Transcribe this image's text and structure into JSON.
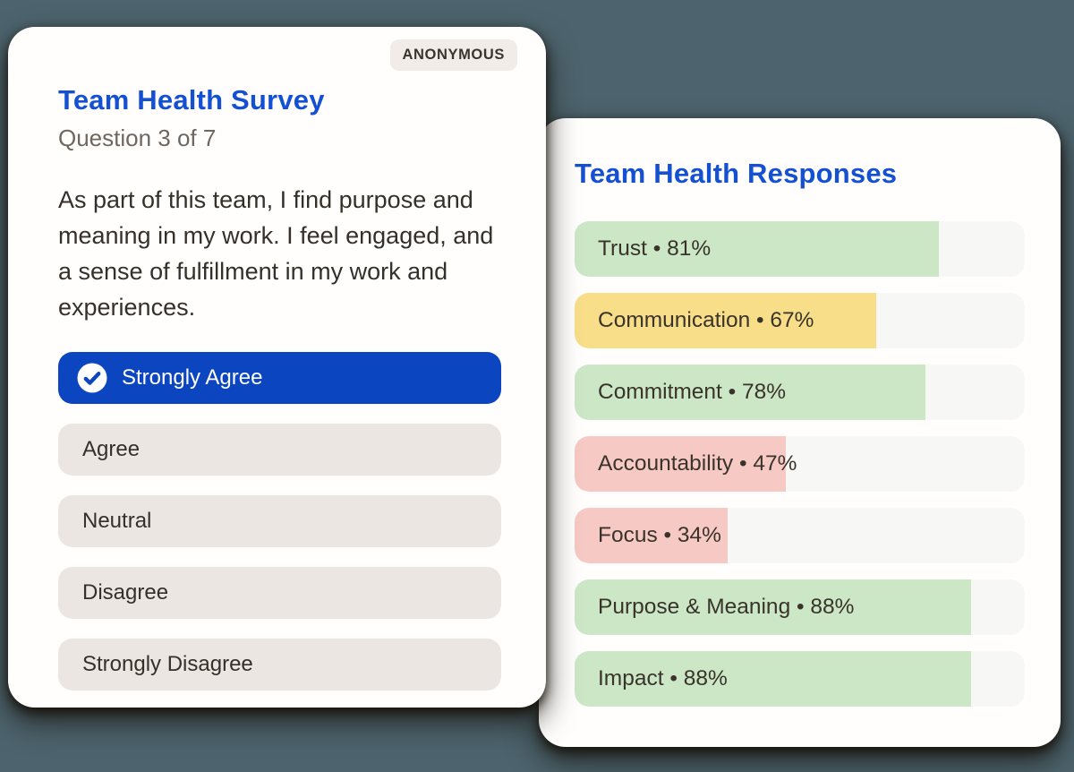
{
  "page": {
    "background_color": "#4d646e"
  },
  "survey_card": {
    "badge": "ANONYMOUS",
    "title": "Team Health Survey",
    "title_color": "#1450d2",
    "progress": "Question 3 of 7",
    "question": "As part of this team, I find purpose and meaning in my work. I feel engaged, and a sense of fulfillment in my work and experiences.",
    "selected_color": "#0b45c0",
    "options": [
      {
        "label": "Strongly Agree",
        "selected": true
      },
      {
        "label": "Agree",
        "selected": false
      },
      {
        "label": "Neutral",
        "selected": false
      },
      {
        "label": "Disagree",
        "selected": false
      },
      {
        "label": "Strongly Disagree",
        "selected": false
      }
    ]
  },
  "responses_card": {
    "title": "Team Health Responses",
    "title_color": "#1450d2"
  },
  "chart_data": {
    "type": "bar",
    "orientation": "horizontal",
    "title": "Team Health Responses",
    "categories": [
      "Trust",
      "Communication",
      "Commitment",
      "Accountability",
      "Focus",
      "Purpose & Meaning",
      "Impact"
    ],
    "values": [
      81,
      67,
      78,
      47,
      34,
      88,
      88
    ],
    "unit": "%",
    "separator": "•",
    "levels": [
      "good",
      "warn",
      "good",
      "bad",
      "bad",
      "good",
      "good"
    ],
    "palette": {
      "good": "#cbe7c5",
      "warn": "#f8de89",
      "bad": "#f7c9c5",
      "track": "#f7f7f6"
    },
    "xlim": [
      0,
      100
    ],
    "grid": false,
    "legend": false
  }
}
